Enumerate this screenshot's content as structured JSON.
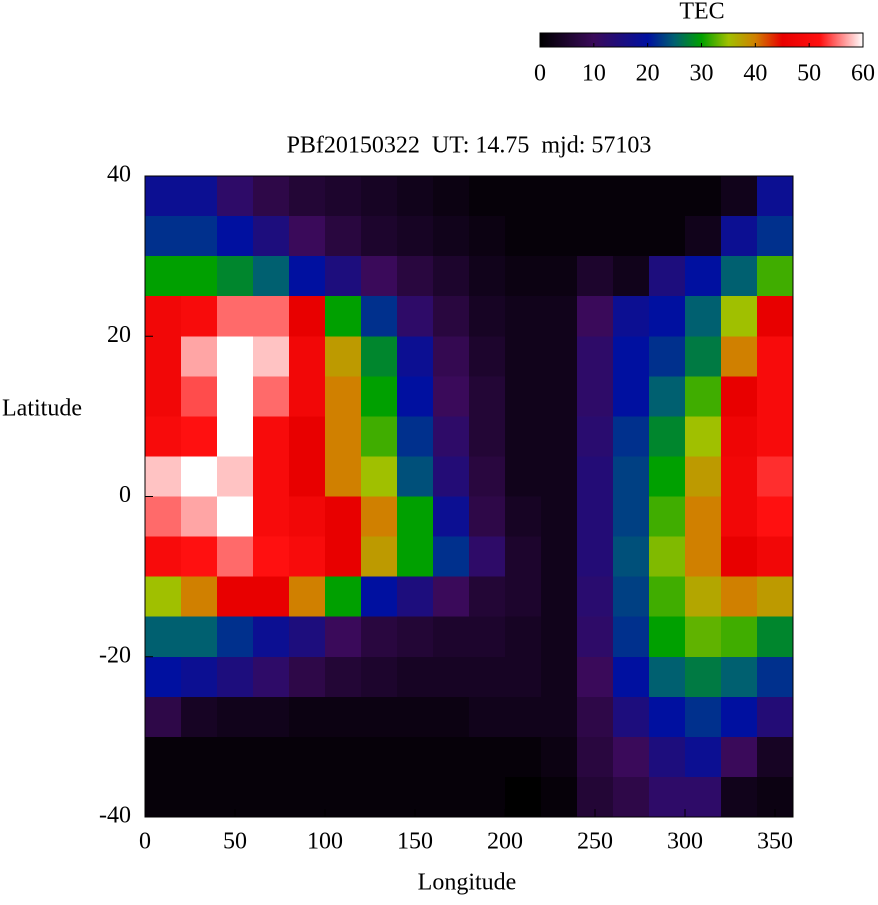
{
  "chart_data": {
    "type": "heatmap",
    "title": "PBf20150322  UT: 14.75  mjd: 57103",
    "x_label": "Longitude",
    "y_label": "Latitude",
    "xlim": [
      0,
      360
    ],
    "xticks": [
      0,
      50,
      100,
      150,
      200,
      250,
      300,
      350
    ],
    "ylim": [
      -40,
      40
    ],
    "yticks": [
      -40,
      -20,
      0,
      20,
      40
    ],
    "x_edges": [
      0,
      20,
      40,
      60,
      80,
      100,
      120,
      140,
      160,
      180,
      200,
      220,
      240,
      260,
      280,
      300,
      320,
      340,
      360
    ],
    "y_edges": [
      40,
      35,
      30,
      25,
      20,
      15,
      10,
      5,
      0,
      -5,
      -10,
      -15,
      -20,
      -25,
      -30,
      -35,
      -40
    ],
    "z": [
      [
        18,
        18,
        12,
        8,
        6,
        5,
        4,
        3,
        2,
        1,
        1,
        1,
        1,
        1,
        1,
        1,
        3,
        18
      ],
      [
        22,
        22,
        20,
        15,
        10,
        7,
        5,
        4,
        3,
        2,
        1,
        1,
        1,
        1,
        1,
        3,
        18,
        22
      ],
      [
        30,
        30,
        28,
        25,
        20,
        15,
        10,
        7,
        5,
        3,
        2,
        2,
        5,
        3,
        15,
        20,
        25,
        32
      ],
      [
        48,
        50,
        55,
        55,
        45,
        30,
        22,
        12,
        7,
        4,
        3,
        3,
        10,
        18,
        20,
        25,
        35,
        45
      ],
      [
        48,
        57,
        60,
        58,
        48,
        38,
        28,
        18,
        9,
        5,
        3,
        3,
        12,
        20,
        22,
        27,
        40,
        50
      ],
      [
        48,
        54,
        60,
        55,
        48,
        40,
        30,
        20,
        10,
        6,
        3,
        3,
        12,
        20,
        25,
        32,
        45,
        50
      ],
      [
        50,
        52,
        60,
        50,
        45,
        40,
        32,
        22,
        12,
        6,
        3,
        3,
        13,
        22,
        28,
        35,
        47,
        50
      ],
      [
        58,
        60,
        58,
        50,
        45,
        40,
        35,
        24,
        14,
        7,
        3,
        3,
        14,
        23,
        30,
        38,
        48,
        53
      ],
      [
        55,
        57,
        60,
        50,
        48,
        45,
        40,
        30,
        18,
        8,
        4,
        3,
        14,
        23,
        32,
        40,
        48,
        52
      ],
      [
        50,
        52,
        55,
        52,
        50,
        45,
        38,
        30,
        22,
        12,
        5,
        3,
        14,
        24,
        34,
        40,
        45,
        48
      ],
      [
        35,
        40,
        45,
        45,
        40,
        30,
        20,
        15,
        10,
        6,
        5,
        3,
        13,
        23,
        32,
        37,
        40,
        38
      ],
      [
        25,
        25,
        22,
        18,
        15,
        10,
        7,
        6,
        5,
        5,
        4,
        3,
        12,
        22,
        30,
        33,
        32,
        28
      ],
      [
        20,
        18,
        15,
        12,
        8,
        6,
        5,
        4,
        4,
        4,
        4,
        3,
        10,
        20,
        25,
        27,
        25,
        22
      ],
      [
        8,
        4,
        3,
        3,
        2,
        2,
        2,
        2,
        2,
        3,
        3,
        3,
        8,
        15,
        20,
        22,
        20,
        14
      ],
      [
        1,
        1,
        1,
        1,
        1,
        1,
        1,
        1,
        1,
        1,
        1,
        2,
        7,
        10,
        15,
        18,
        10,
        4
      ],
      [
        1,
        1,
        1,
        1,
        1,
        1,
        1,
        1,
        1,
        1,
        0,
        1,
        6,
        8,
        12,
        12,
        3,
        2
      ]
    ],
    "colormap": [
      [
        0,
        "#000000"
      ],
      [
        10,
        "#3a0a5a"
      ],
      [
        20,
        "#0010a0"
      ],
      [
        25,
        "#006070"
      ],
      [
        30,
        "#00a000"
      ],
      [
        35,
        "#a0c000"
      ],
      [
        40,
        "#d08000"
      ],
      [
        45,
        "#e80000"
      ],
      [
        52,
        "#ff1010"
      ],
      [
        60,
        "#ffffff"
      ]
    ],
    "colorbar": {
      "label": "TEC",
      "lim": [
        0,
        60
      ],
      "ticks": [
        0,
        10,
        20,
        30,
        40,
        50,
        60
      ]
    }
  }
}
